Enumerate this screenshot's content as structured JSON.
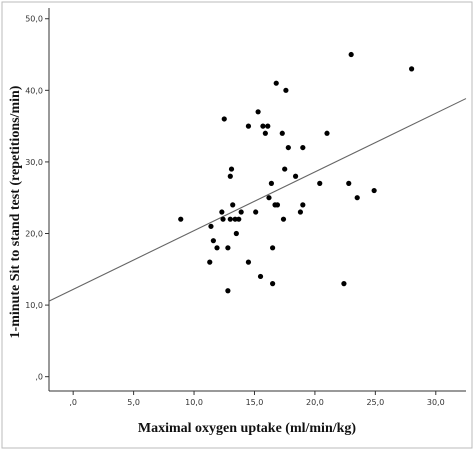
{
  "chart_data": {
    "type": "scatter",
    "title": "",
    "xlabel": "Maximal oxygen uptake (ml/min/kg)",
    "ylabel": "1-minute Sit to stand test (repetitions/min)",
    "xlim": [
      -2,
      32.5
    ],
    "ylim": [
      -2,
      51.5
    ],
    "x_ticks": [
      0,
      5,
      10,
      15,
      20,
      25,
      30
    ],
    "x_tick_labels": [
      ",0",
      "5,0",
      "10,0",
      "15,0",
      "20,0",
      "25,0",
      "30,0"
    ],
    "y_ticks": [
      0,
      10,
      20,
      30,
      40,
      50
    ],
    "y_tick_labels": [
      ",0",
      "10,0",
      "20,0",
      "30,0",
      "40,0",
      "50,0"
    ],
    "grid": false,
    "legend": false,
    "colors": {
      "points": "#000000",
      "fit_line": "#666666",
      "axes": "#333333",
      "frame": "#bbbbbb"
    },
    "fit_line": {
      "intercept": 12.2,
      "slope": 0.82
    },
    "points": [
      {
        "x": 8.9,
        "y": 22
      },
      {
        "x": 11.3,
        "y": 16
      },
      {
        "x": 11.4,
        "y": 21
      },
      {
        "x": 11.6,
        "y": 19
      },
      {
        "x": 11.9,
        "y": 18
      },
      {
        "x": 12.3,
        "y": 23
      },
      {
        "x": 12.4,
        "y": 22
      },
      {
        "x": 12.5,
        "y": 36
      },
      {
        "x": 12.8,
        "y": 18
      },
      {
        "x": 12.8,
        "y": 12
      },
      {
        "x": 13.0,
        "y": 28
      },
      {
        "x": 13.0,
        "y": 22
      },
      {
        "x": 13.1,
        "y": 29
      },
      {
        "x": 13.2,
        "y": 24
      },
      {
        "x": 13.4,
        "y": 22
      },
      {
        "x": 13.5,
        "y": 20
      },
      {
        "x": 13.7,
        "y": 22
      },
      {
        "x": 13.9,
        "y": 23
      },
      {
        "x": 14.5,
        "y": 35
      },
      {
        "x": 14.5,
        "y": 16
      },
      {
        "x": 15.1,
        "y": 23
      },
      {
        "x": 15.3,
        "y": 37
      },
      {
        "x": 15.5,
        "y": 14
      },
      {
        "x": 15.7,
        "y": 35
      },
      {
        "x": 15.9,
        "y": 34
      },
      {
        "x": 16.1,
        "y": 35
      },
      {
        "x": 16.2,
        "y": 25
      },
      {
        "x": 16.4,
        "y": 27
      },
      {
        "x": 16.5,
        "y": 18
      },
      {
        "x": 16.5,
        "y": 13
      },
      {
        "x": 16.7,
        "y": 24
      },
      {
        "x": 16.8,
        "y": 41
      },
      {
        "x": 16.9,
        "y": 24
      },
      {
        "x": 17.3,
        "y": 34
      },
      {
        "x": 17.4,
        "y": 22
      },
      {
        "x": 17.5,
        "y": 29
      },
      {
        "x": 17.6,
        "y": 40
      },
      {
        "x": 17.8,
        "y": 32
      },
      {
        "x": 18.4,
        "y": 28
      },
      {
        "x": 18.8,
        "y": 23
      },
      {
        "x": 19.0,
        "y": 32
      },
      {
        "x": 19.0,
        "y": 24
      },
      {
        "x": 20.4,
        "y": 27
      },
      {
        "x": 21.0,
        "y": 34
      },
      {
        "x": 22.4,
        "y": 13
      },
      {
        "x": 22.8,
        "y": 27
      },
      {
        "x": 23.0,
        "y": 45
      },
      {
        "x": 23.5,
        "y": 25
      },
      {
        "x": 24.9,
        "y": 26
      },
      {
        "x": 28.0,
        "y": 43
      }
    ]
  }
}
